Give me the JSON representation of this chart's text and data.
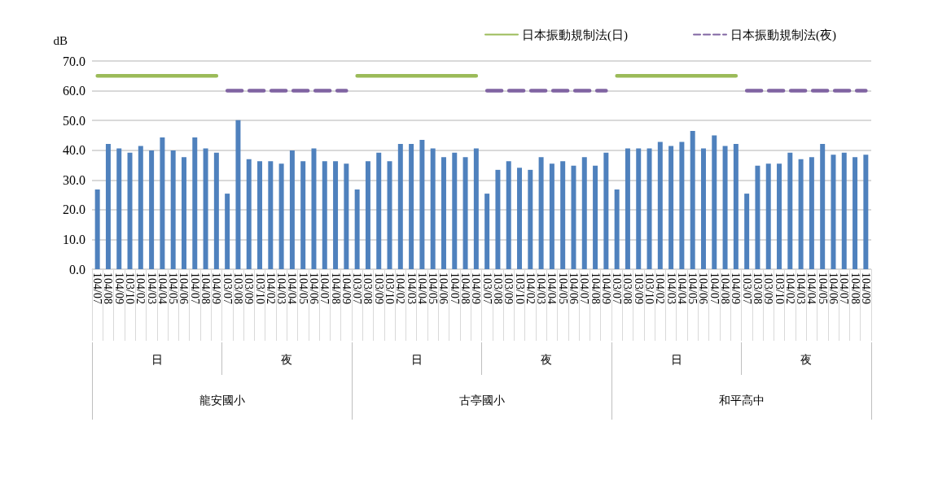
{
  "chart_data": {
    "type": "bar",
    "ylabel": "dB",
    "categories": [
      "104/07",
      "104/08",
      "104/09",
      "103/10",
      "104/02",
      "104/03",
      "104/04",
      "104/05",
      "104/06",
      "104/07",
      "104/08",
      "104/09",
      "103/07",
      "103/08",
      "103/09",
      "103/10",
      "104/02",
      "104/03",
      "104/04",
      "104/05",
      "104/06",
      "104/07",
      "104/08",
      "104/09",
      "103/07",
      "103/08",
      "103/09",
      "103/10",
      "104/02",
      "104/03",
      "104/04",
      "104/05",
      "104/06",
      "104/07",
      "104/08",
      "104/09",
      "103/07",
      "103/08",
      "103/09",
      "103/10",
      "104/02",
      "104/03",
      "104/04",
      "104/05",
      "104/06",
      "104/07",
      "104/08",
      "104/09",
      "103/07",
      "103/08",
      "103/09",
      "103/10",
      "104/02",
      "104/03",
      "104/04",
      "104/05",
      "104/06",
      "104/07",
      "104/08",
      "104/09",
      "103/07",
      "103/08",
      "103/09",
      "103/10",
      "104/02",
      "104/03",
      "104/04",
      "104/05",
      "104/06",
      "104/07",
      "104/08",
      "104/09"
    ],
    "series": [
      {
        "color": "#4f81bd",
        "values": [
          26.8,
          42.1,
          40.6,
          39.2,
          41.4,
          39.9,
          44.3,
          39.9,
          37.7,
          44.3,
          40.6,
          39.2,
          25.4,
          50.1,
          37.0,
          36.3,
          36.3,
          35.5,
          39.9,
          36.3,
          40.6,
          36.3,
          36.3,
          35.5,
          26.8,
          36.3,
          39.2,
          36.3,
          42.1,
          42.1,
          43.5,
          40.6,
          37.7,
          39.2,
          37.7,
          40.6,
          25.4,
          33.4,
          36.3,
          34.1,
          33.4,
          37.7,
          35.5,
          36.3,
          34.8,
          37.7,
          34.8,
          39.2,
          26.8,
          40.6,
          40.6,
          40.6,
          42.8,
          41.4,
          42.8,
          46.5,
          40.6,
          45.0,
          41.4,
          42.1,
          25.4,
          34.8,
          35.5,
          35.5,
          39.2,
          37.0,
          37.7,
          42.1,
          38.5,
          39.2,
          37.7,
          38.5
        ]
      },
      {
        "type": "line",
        "name": "日本振動規制法(日)",
        "color": "#9bbb59",
        "line_style": "solid",
        "values": [
          65,
          65,
          65,
          65,
          65,
          65,
          65,
          65,
          65,
          65,
          65,
          65,
          null,
          null,
          null,
          null,
          null,
          null,
          null,
          null,
          null,
          null,
          null,
          null,
          65,
          65,
          65,
          65,
          65,
          65,
          65,
          65,
          65,
          65,
          65,
          65,
          null,
          null,
          null,
          null,
          null,
          null,
          null,
          null,
          null,
          null,
          null,
          null,
          65,
          65,
          65,
          65,
          65,
          65,
          65,
          65,
          65,
          65,
          65,
          65,
          null,
          null,
          null,
          null,
          null,
          null,
          null,
          null,
          null,
          null,
          null,
          null
        ]
      },
      {
        "type": "line",
        "name": "日本振動規制法(夜)",
        "color": "#8064a2",
        "line_style": "dashed",
        "values": [
          null,
          null,
          null,
          null,
          null,
          null,
          null,
          null,
          null,
          null,
          null,
          null,
          60,
          60,
          60,
          60,
          60,
          60,
          60,
          60,
          60,
          60,
          60,
          60,
          null,
          null,
          null,
          null,
          null,
          null,
          null,
          null,
          null,
          null,
          null,
          null,
          60,
          60,
          60,
          60,
          60,
          60,
          60,
          60,
          60,
          60,
          60,
          60,
          null,
          null,
          null,
          null,
          null,
          null,
          null,
          null,
          null,
          null,
          null,
          null,
          60,
          60,
          60,
          60,
          60,
          60,
          60,
          60,
          60,
          60,
          60,
          60
        ]
      }
    ],
    "ylim": [
      0,
      70
    ],
    "yticks": [
      {
        "value": 0,
        "label": "0.0"
      },
      {
        "value": 10,
        "label": "10.0"
      },
      {
        "value": 20,
        "label": "20.0"
      },
      {
        "value": 30,
        "label": "30.0"
      },
      {
        "value": 40,
        "label": "40.0"
      },
      {
        "value": 50,
        "label": "50.0"
      },
      {
        "value": 60,
        "label": "60.0"
      },
      {
        "value": 70,
        "label": "70.0"
      }
    ],
    "annotations": [
      "日",
      "夜",
      "日",
      "夜",
      "日",
      "夜",
      "龍安國小",
      "古亭國小",
      "和平高中"
    ],
    "grid": "y",
    "legend": "top right",
    "marker": "none"
  }
}
